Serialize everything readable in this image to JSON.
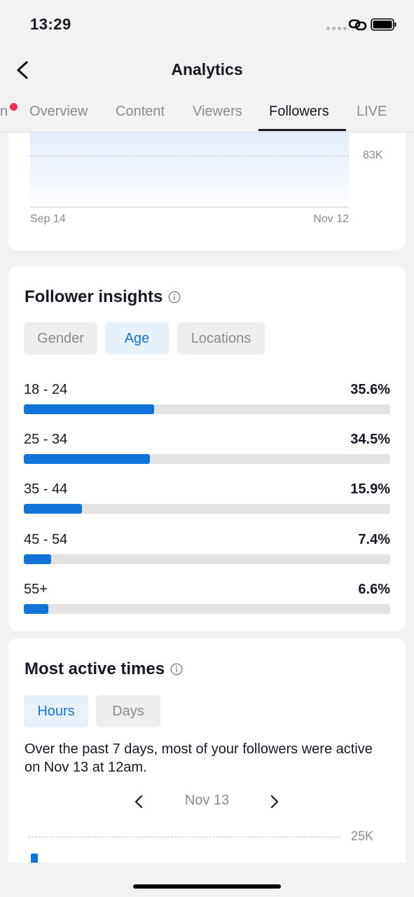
{
  "status_bar": {
    "time": "13:29"
  },
  "header": {
    "title": "Analytics"
  },
  "tabs": [
    {
      "label": "n",
      "active": false
    },
    {
      "label": "Overview",
      "active": false
    },
    {
      "label": "Content",
      "active": false
    },
    {
      "label": "Viewers",
      "active": false
    },
    {
      "label": "Followers",
      "active": true
    },
    {
      "label": "LIVE",
      "active": false
    }
  ],
  "follower_chart": {
    "y_label": "83K",
    "x_start": "Sep 14",
    "x_end": "Nov 12"
  },
  "follower_insights": {
    "title": "Follower insights",
    "chips": [
      {
        "label": "Gender",
        "active": false
      },
      {
        "label": "Age",
        "active": true
      },
      {
        "label": "Locations",
        "active": false
      }
    ],
    "age_groups": [
      {
        "label": "18 - 24",
        "percent_text": "35.6%",
        "value": 35.6
      },
      {
        "label": "25 - 34",
        "percent_text": "34.5%",
        "value": 34.5
      },
      {
        "label": "35 - 44",
        "percent_text": "15.9%",
        "value": 15.9
      },
      {
        "label": "45 - 54",
        "percent_text": "7.4%",
        "value": 7.4
      },
      {
        "label": "55+",
        "percent_text": "6.6%",
        "value": 6.6
      }
    ]
  },
  "most_active": {
    "title": "Most active times",
    "chips": [
      {
        "label": "Hours",
        "active": true
      },
      {
        "label": "Days",
        "active": false
      }
    ],
    "description": "Over the past 7 days, most of your followers were active on Nov 13 at 12am.",
    "date": "Nov 13",
    "y_label": "25K"
  },
  "colors": {
    "accent": "#0f73d8",
    "chip_active_bg": "#e6f1fc",
    "notification_dot": "#fe2c55"
  }
}
